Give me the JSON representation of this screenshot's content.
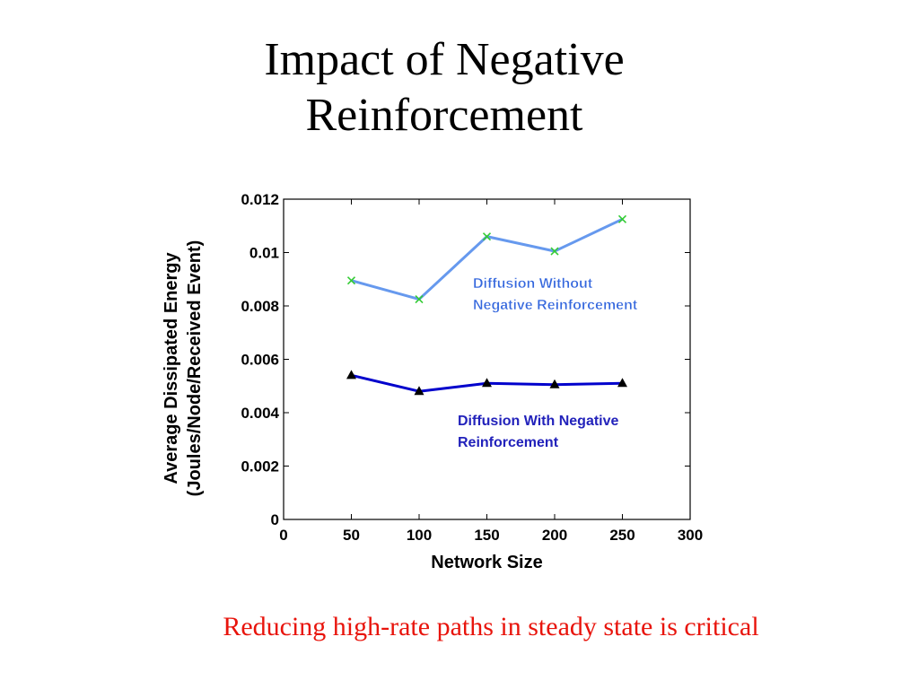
{
  "slide": {
    "title_line1": "Impact of Negative",
    "title_line2": "Reinforcement",
    "footer": "Reducing high-rate paths in steady state is critical"
  },
  "colors": {
    "series_without": "#6699ee",
    "series_with": "#0000cc",
    "footer": "#e8140c"
  },
  "chart_data": {
    "type": "line",
    "xlabel": "Network Size",
    "ylabel_line1": "Average Dissipated Energy",
    "ylabel_line2": "(Joules/Node/Received Event)",
    "xlim": [
      0,
      300
    ],
    "ylim": [
      0,
      0.012
    ],
    "xticks": [
      0,
      50,
      100,
      150,
      200,
      250,
      300
    ],
    "xtick_labels": [
      "0",
      "50",
      "100",
      "150",
      "200",
      "250",
      "300"
    ],
    "yticks": [
      0,
      0.002,
      0.004,
      0.006,
      0.008,
      0.01,
      0.012
    ],
    "ytick_labels": [
      "0",
      "0.002",
      "0.004",
      "0.006",
      "0.008",
      "0.01",
      "0.012"
    ],
    "grid": false,
    "series": [
      {
        "name_line1": "Diffusion Without",
        "name_line2": "Negative Reinforcement",
        "marker": "x",
        "x": [
          50,
          100,
          150,
          200,
          250
        ],
        "y": [
          0.00895,
          0.00825,
          0.0106,
          0.01005,
          0.01125
        ]
      },
      {
        "name_line1": "Diffusion With Negative",
        "name_line2": "Reinforcement",
        "marker": "triangle",
        "x": [
          50,
          100,
          150,
          200,
          250
        ],
        "y": [
          0.0054,
          0.0048,
          0.0051,
          0.00505,
          0.0051
        ]
      }
    ]
  }
}
